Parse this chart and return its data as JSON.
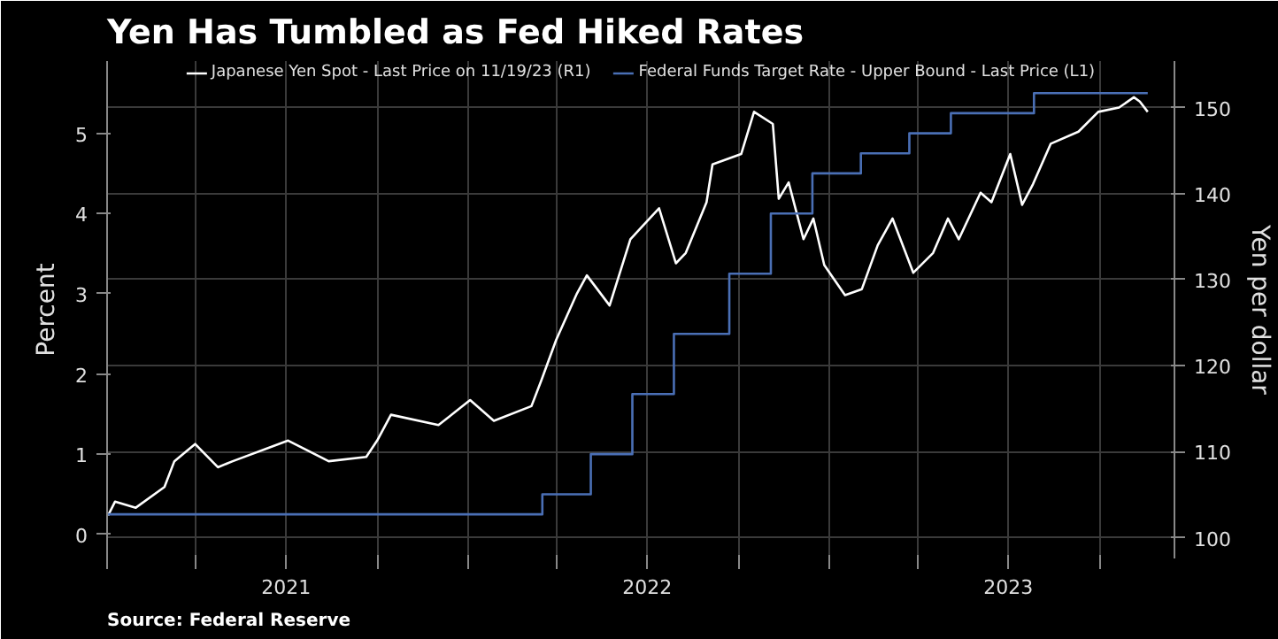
{
  "chart_data": {
    "type": "line",
    "title": "Yen Has Tumbled as Fed Hiked Rates",
    "ylabel": "Percent",
    "y2label": "Yen per dollar",
    "annotations": [
      "Source: Federal Reserve"
    ],
    "xlim": [
      "2021-01-01",
      "2023-12-16"
    ],
    "xticks": [
      {
        "value": "2021-01-01",
        "label": null
      },
      {
        "value": "2021-04-01",
        "label": null
      },
      {
        "value": "2021-07-01",
        "label": "2021"
      },
      {
        "value": "2021-10-01",
        "label": null
      },
      {
        "value": "2022-01-01",
        "label": null
      },
      {
        "value": "2022-04-01",
        "label": null
      },
      {
        "value": "2022-07-01",
        "label": "2022"
      },
      {
        "value": "2022-10-01",
        "label": null
      },
      {
        "value": "2023-01-01",
        "label": null
      },
      {
        "value": "2023-04-01",
        "label": null
      },
      {
        "value": "2023-07-01",
        "label": "2023"
      },
      {
        "value": "2023-10-01",
        "label": null
      }
    ],
    "ylim": [
      -0.3,
      5.9
    ],
    "yticks": [
      0,
      1,
      2,
      3,
      4,
      5
    ],
    "y2lim": [
      97.6,
      155.4
    ],
    "y2ticks": [
      100,
      110,
      120,
      130,
      140,
      150
    ],
    "grid": true,
    "legend": "top",
    "series": [
      {
        "name": "Japanese Yen Spot - Last Price on 11/19/23 (R1)",
        "color": "#ffffff",
        "axis": "y2",
        "x": [
          "2021-01-02",
          "2021-01-09",
          "2021-01-30",
          "2021-02-28",
          "2021-03-10",
          "2021-03-31",
          "2021-04-23",
          "2021-05-08",
          "2021-07-03",
          "2021-08-13",
          "2021-09-20",
          "2021-10-01",
          "2021-10-15",
          "2021-12-02",
          "2022-01-03",
          "2022-01-27",
          "2022-03-06",
          "2022-03-16",
          "2022-03-31",
          "2022-04-21",
          "2022-05-01",
          "2022-05-24",
          "2022-06-14",
          "2022-07-13",
          "2022-07-30",
          "2022-08-09",
          "2022-08-30",
          "2022-09-05",
          "2022-10-04",
          "2022-10-17",
          "2022-11-05",
          "2022-11-11",
          "2022-11-21",
          "2022-12-06",
          "2022-12-16",
          "2022-12-27",
          "2023-01-17",
          "2023-02-03",
          "2023-02-19",
          "2023-03-06",
          "2023-03-27",
          "2023-04-16",
          "2023-05-01",
          "2023-05-12",
          "2023-06-03",
          "2023-06-14",
          "2023-07-03",
          "2023-07-15",
          "2023-07-26",
          "2023-08-13",
          "2023-09-10",
          "2023-09-30",
          "2023-10-21",
          "2023-11-05",
          "2023-11-11",
          "2023-11-19"
        ],
        "values": [
          102.6,
          104.2,
          103.5,
          105.9,
          108.9,
          110.9,
          108.2,
          108.9,
          111.3,
          108.9,
          109.4,
          111.3,
          114.3,
          113.1,
          116,
          113.6,
          115.3,
          118.3,
          123,
          128.4,
          130.5,
          127,
          134.7,
          138.3,
          131.9,
          133.1,
          139,
          143.4,
          144.6,
          149.5,
          148.1,
          139.4,
          141.3,
          134.7,
          137.1,
          131.7,
          128.2,
          128.9,
          134,
          137.1,
          130.8,
          133.1,
          137.1,
          134.7,
          140.1,
          139,
          144.6,
          138.7,
          141.1,
          145.8,
          147.2,
          149.5,
          150,
          151.2,
          150.7,
          149.5
        ]
      },
      {
        "name": "Federal Funds Target Rate - Upper Bound - Last Price (L1)",
        "color": "#4a6fb5",
        "type": "step",
        "axis": "y",
        "x": [
          "2021-01-02",
          "2022-03-17",
          "2022-05-05",
          "2022-06-16",
          "2022-07-28",
          "2022-09-22",
          "2022-11-03",
          "2022-12-15",
          "2023-02-02",
          "2023-03-23",
          "2023-05-04",
          "2023-07-27",
          "2023-11-19"
        ],
        "values": [
          0.25,
          0.5,
          1.0,
          1.75,
          2.5,
          3.25,
          4.0,
          4.5,
          4.75,
          5.0,
          5.25,
          5.5,
          5.5
        ]
      }
    ]
  }
}
